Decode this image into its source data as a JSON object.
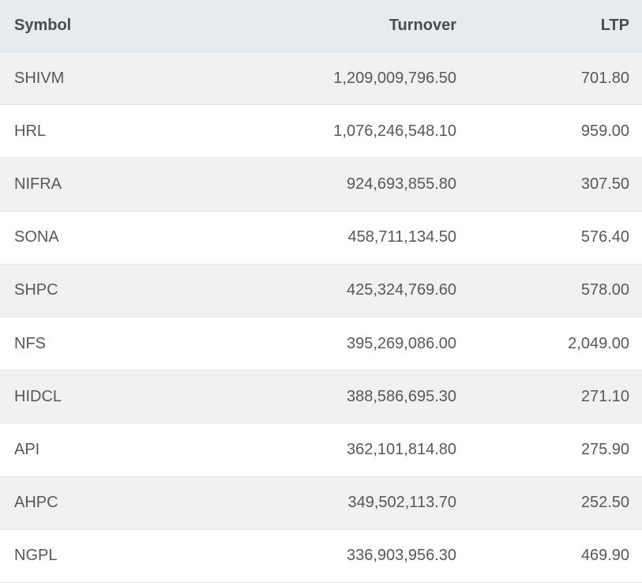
{
  "table": {
    "title": "top-turnover-table",
    "columns": [
      {
        "id": "symbol",
        "label": "Symbol",
        "align": "left"
      },
      {
        "id": "turnover",
        "label": "Turnover",
        "align": "right"
      },
      {
        "id": "ltp",
        "label": "LTP",
        "align": "right"
      }
    ],
    "rows": [
      {
        "symbol": "SHIVM",
        "turnover": "1,209,009,796.50",
        "ltp": "701.80"
      },
      {
        "symbol": "HRL",
        "turnover": "1,076,246,548.10",
        "ltp": "959.00"
      },
      {
        "symbol": "NIFRA",
        "turnover": "924,693,855.80",
        "ltp": "307.50"
      },
      {
        "symbol": "SONA",
        "turnover": "458,711,134.50",
        "ltp": "576.40"
      },
      {
        "symbol": "SHPC",
        "turnover": "425,324,769.60",
        "ltp": "578.00"
      },
      {
        "symbol": "NFS",
        "turnover": "395,269,086.00",
        "ltp": "2,049.00"
      },
      {
        "symbol": "HIDCL",
        "turnover": "388,586,695.30",
        "ltp": "271.10"
      },
      {
        "symbol": "API",
        "turnover": "362,101,814.80",
        "ltp": "275.90"
      },
      {
        "symbol": "AHPC",
        "turnover": "349,502,113.70",
        "ltp": "252.50"
      },
      {
        "symbol": "NGPL",
        "turnover": "336,903,956.30",
        "ltp": "469.90"
      }
    ],
    "colors": {
      "header_bg": "#e8ebee",
      "header_border": "#d9dde0",
      "header_text": "#454c53",
      "row_bg": "#ffffff",
      "row_alt_bg": "#f1f1f1",
      "row_border": "#e5e5e5",
      "cell_text": "#55585c"
    }
  }
}
